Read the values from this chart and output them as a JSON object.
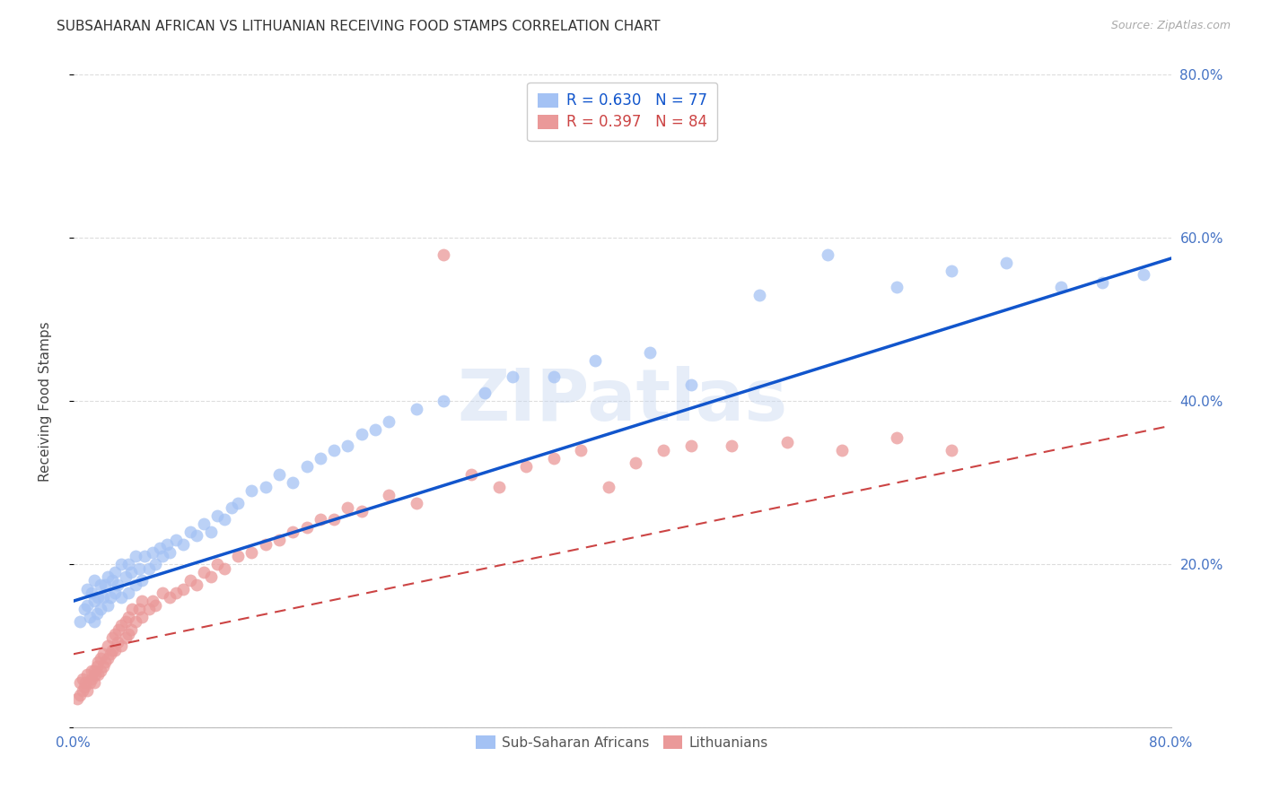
{
  "title": "SUBSAHARAN AFRICAN VS LITHUANIAN RECEIVING FOOD STAMPS CORRELATION CHART",
  "source": "Source: ZipAtlas.com",
  "ylabel": "Receiving Food Stamps",
  "xlim": [
    0.0,
    0.8
  ],
  "ylim": [
    0.0,
    0.8
  ],
  "xtick_positions": [
    0.0,
    0.2,
    0.4,
    0.6,
    0.8
  ],
  "xtick_labels": [
    "0.0%",
    "",
    "",
    "",
    "80.0%"
  ],
  "ytick_right_positions": [
    0.2,
    0.4,
    0.6,
    0.8
  ],
  "ytick_right_labels": [
    "20.0%",
    "40.0%",
    "60.0%",
    "80.0%"
  ],
  "blue_R": 0.63,
  "blue_N": 77,
  "pink_R": 0.397,
  "pink_N": 84,
  "blue_color": "#a4c2f4",
  "pink_color": "#ea9999",
  "blue_line_color": "#1155cc",
  "pink_line_color": "#cc4444",
  "legend_label_blue": "Sub-Saharan Africans",
  "legend_label_pink": "Lithuanians",
  "watermark": "ZIPatlas",
  "blue_line_x0": 0.0,
  "blue_line_y0": 0.155,
  "blue_line_x1": 0.8,
  "blue_line_y1": 0.575,
  "pink_line_x0": 0.0,
  "pink_line_y0": 0.09,
  "pink_line_x1": 0.8,
  "pink_line_y1": 0.37,
  "blue_scatter_x": [
    0.005,
    0.008,
    0.01,
    0.01,
    0.012,
    0.013,
    0.015,
    0.015,
    0.015,
    0.017,
    0.018,
    0.02,
    0.02,
    0.022,
    0.023,
    0.025,
    0.025,
    0.027,
    0.028,
    0.03,
    0.03,
    0.032,
    0.035,
    0.035,
    0.038,
    0.04,
    0.04,
    0.042,
    0.045,
    0.045,
    0.048,
    0.05,
    0.052,
    0.055,
    0.058,
    0.06,
    0.063,
    0.065,
    0.068,
    0.07,
    0.075,
    0.08,
    0.085,
    0.09,
    0.095,
    0.1,
    0.105,
    0.11,
    0.115,
    0.12,
    0.13,
    0.14,
    0.15,
    0.16,
    0.17,
    0.18,
    0.19,
    0.2,
    0.21,
    0.22,
    0.23,
    0.25,
    0.27,
    0.3,
    0.32,
    0.35,
    0.38,
    0.42,
    0.45,
    0.5,
    0.55,
    0.6,
    0.64,
    0.68,
    0.72,
    0.75,
    0.78
  ],
  "blue_scatter_y": [
    0.13,
    0.145,
    0.15,
    0.17,
    0.135,
    0.165,
    0.13,
    0.155,
    0.18,
    0.14,
    0.16,
    0.145,
    0.175,
    0.16,
    0.175,
    0.15,
    0.185,
    0.16,
    0.18,
    0.165,
    0.19,
    0.175,
    0.16,
    0.2,
    0.185,
    0.165,
    0.2,
    0.19,
    0.175,
    0.21,
    0.195,
    0.18,
    0.21,
    0.195,
    0.215,
    0.2,
    0.22,
    0.21,
    0.225,
    0.215,
    0.23,
    0.225,
    0.24,
    0.235,
    0.25,
    0.24,
    0.26,
    0.255,
    0.27,
    0.275,
    0.29,
    0.295,
    0.31,
    0.3,
    0.32,
    0.33,
    0.34,
    0.345,
    0.36,
    0.365,
    0.375,
    0.39,
    0.4,
    0.41,
    0.43,
    0.43,
    0.45,
    0.46,
    0.42,
    0.53,
    0.58,
    0.54,
    0.56,
    0.57,
    0.54,
    0.545,
    0.555
  ],
  "pink_scatter_x": [
    0.003,
    0.005,
    0.005,
    0.007,
    0.007,
    0.008,
    0.009,
    0.01,
    0.01,
    0.012,
    0.013,
    0.013,
    0.015,
    0.015,
    0.016,
    0.017,
    0.018,
    0.018,
    0.02,
    0.02,
    0.022,
    0.022,
    0.023,
    0.025,
    0.025,
    0.027,
    0.028,
    0.028,
    0.03,
    0.03,
    0.032,
    0.033,
    0.035,
    0.035,
    0.038,
    0.038,
    0.04,
    0.04,
    0.042,
    0.043,
    0.045,
    0.048,
    0.05,
    0.05,
    0.055,
    0.058,
    0.06,
    0.065,
    0.07,
    0.075,
    0.08,
    0.085,
    0.09,
    0.095,
    0.1,
    0.105,
    0.11,
    0.12,
    0.13,
    0.14,
    0.15,
    0.16,
    0.17,
    0.18,
    0.19,
    0.2,
    0.21,
    0.23,
    0.25,
    0.27,
    0.29,
    0.31,
    0.33,
    0.35,
    0.37,
    0.39,
    0.41,
    0.43,
    0.45,
    0.48,
    0.52,
    0.56,
    0.6,
    0.64
  ],
  "pink_scatter_y": [
    0.035,
    0.04,
    0.055,
    0.045,
    0.06,
    0.05,
    0.055,
    0.045,
    0.065,
    0.055,
    0.06,
    0.07,
    0.055,
    0.07,
    0.065,
    0.075,
    0.065,
    0.08,
    0.07,
    0.085,
    0.075,
    0.09,
    0.08,
    0.085,
    0.1,
    0.09,
    0.095,
    0.11,
    0.095,
    0.115,
    0.105,
    0.12,
    0.1,
    0.125,
    0.11,
    0.13,
    0.115,
    0.135,
    0.12,
    0.145,
    0.13,
    0.145,
    0.135,
    0.155,
    0.145,
    0.155,
    0.15,
    0.165,
    0.16,
    0.165,
    0.17,
    0.18,
    0.175,
    0.19,
    0.185,
    0.2,
    0.195,
    0.21,
    0.215,
    0.225,
    0.23,
    0.24,
    0.245,
    0.255,
    0.255,
    0.27,
    0.265,
    0.285,
    0.275,
    0.58,
    0.31,
    0.295,
    0.32,
    0.33,
    0.34,
    0.295,
    0.325,
    0.34,
    0.345,
    0.345,
    0.35,
    0.34,
    0.355,
    0.34
  ],
  "grid_color": "#dddddd",
  "bg_color": "#ffffff",
  "title_color": "#333333",
  "axis_tick_color": "#4472c4"
}
